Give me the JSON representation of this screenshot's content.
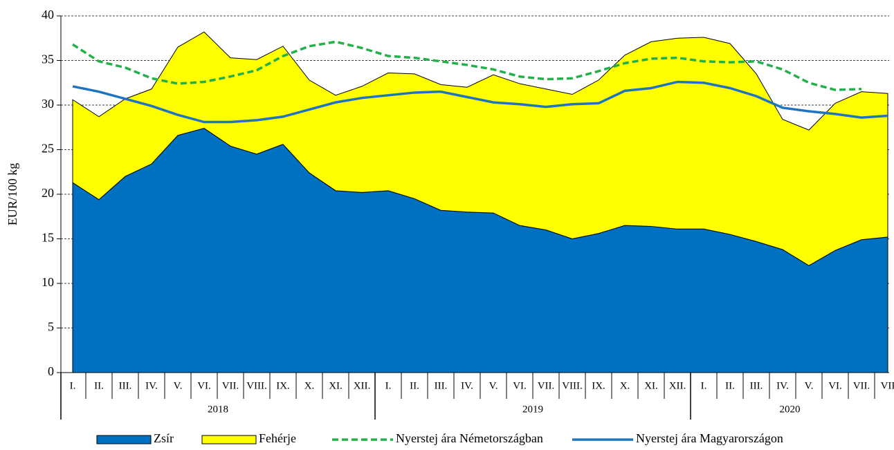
{
  "chart_data": {
    "type": "stacked-area-line",
    "y_label": "EUR/100 kg",
    "categories": [
      "I.",
      "II.",
      "III.",
      "IV.",
      "V.",
      "VI.",
      "VII.",
      "VIII.",
      "IX.",
      "X.",
      "XI.",
      "XII.",
      "I.",
      "II.",
      "III.",
      "IV.",
      "V.",
      "VI.",
      "VII.",
      "VIII.",
      "IX.",
      "X.",
      "XI.",
      "XII.",
      "I.",
      "II.",
      "III.",
      "IV.",
      "V.",
      "VI.",
      "VII.",
      "VII"
    ],
    "groups": [
      {
        "label": "2018",
        "count": 12
      },
      {
        "label": "2019",
        "count": 12
      },
      {
        "label": "2020",
        "count": 8
      }
    ],
    "series": [
      {
        "name": "Zsír",
        "kind": "area",
        "color": "#0070c0",
        "values": [
          21.3,
          19.4,
          22.0,
          23.4,
          26.6,
          27.4,
          25.4,
          24.5,
          25.6,
          22.4,
          20.4,
          20.2,
          20.4,
          19.5,
          18.2,
          18.0,
          17.9,
          16.5,
          16.0,
          15.0,
          15.6,
          16.5,
          16.4,
          16.1,
          16.1,
          15.5,
          14.7,
          13.8,
          12.0,
          13.7,
          14.9,
          15.2
        ]
      },
      {
        "name": "Fehérje",
        "kind": "area",
        "color": "#ffff00",
        "values": [
          9.3,
          9.3,
          8.7,
          8.4,
          9.9,
          10.8,
          9.9,
          10.6,
          11.0,
          10.4,
          10.7,
          11.9,
          13.2,
          14.0,
          14.1,
          14.0,
          15.5,
          15.9,
          15.8,
          16.2,
          17.2,
          19.1,
          20.7,
          21.4,
          21.5,
          21.4,
          18.8,
          14.6,
          15.2,
          16.5,
          16.6,
          16.1
        ]
      },
      {
        "name": "Nyerstej ára Németországban",
        "kind": "dashed-line",
        "color": "#22b04a",
        "values": [
          36.8,
          34.9,
          34.2,
          33.0,
          32.4,
          32.6,
          33.2,
          33.9,
          35.5,
          36.6,
          37.1,
          36.4,
          35.5,
          35.3,
          34.9,
          34.5,
          34.0,
          33.2,
          32.9,
          33.0,
          33.8,
          34.7,
          35.2,
          35.3,
          34.9,
          34.8,
          34.9,
          34.0,
          32.5,
          31.7,
          31.8,
          null
        ]
      },
      {
        "name": "Nyerstej ára Magyarországon",
        "kind": "line",
        "color": "#1f74c0",
        "values": [
          32.1,
          31.5,
          30.7,
          29.9,
          28.9,
          28.1,
          28.1,
          28.3,
          28.7,
          29.5,
          30.3,
          30.8,
          31.1,
          31.4,
          31.5,
          30.9,
          30.3,
          30.1,
          29.8,
          30.1,
          30.2,
          31.6,
          31.9,
          32.6,
          32.5,
          31.9,
          31.0,
          29.7,
          29.3,
          29.0,
          28.6,
          28.8
        ]
      }
    ],
    "ylim": [
      0,
      40
    ],
    "yticks": [
      0,
      5,
      10,
      15,
      20,
      25,
      30,
      35,
      40
    ],
    "grid": true
  }
}
